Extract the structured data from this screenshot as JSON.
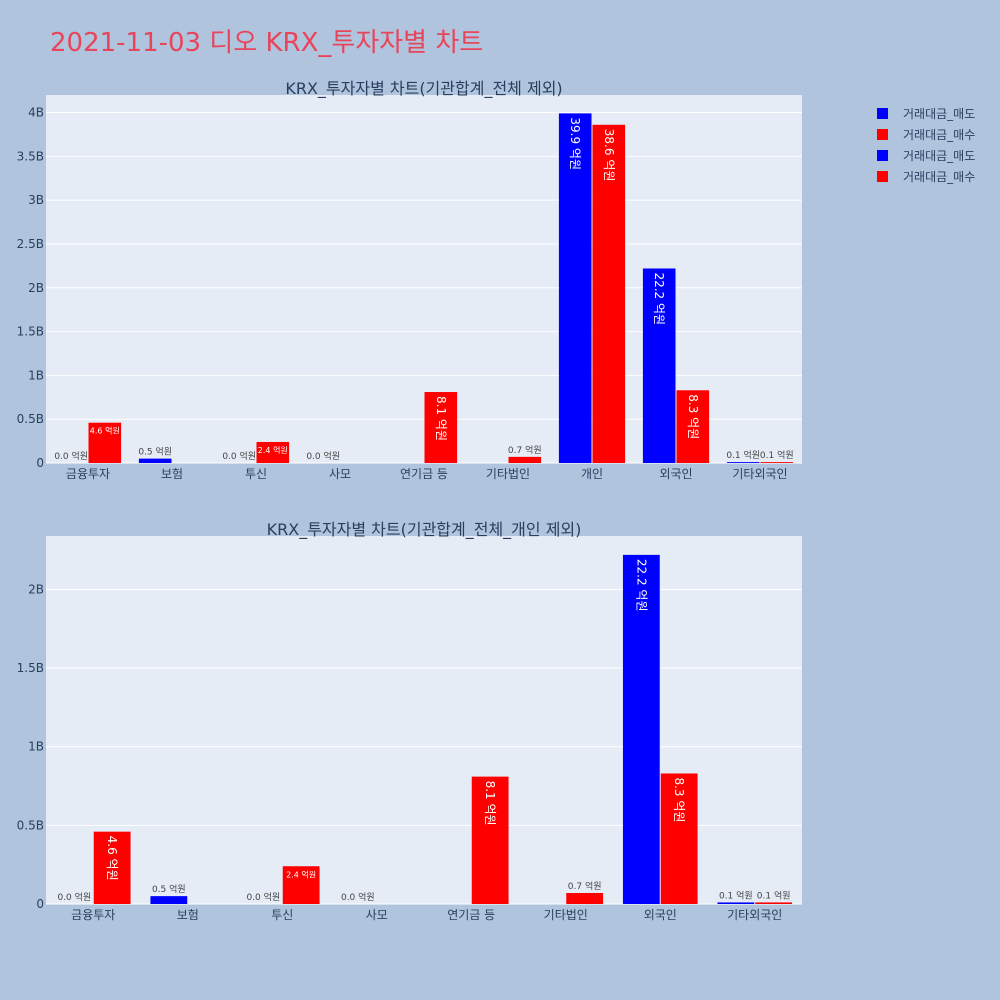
{
  "page": {
    "title": "2021-11-03 디오 KRX_투자자별 차트"
  },
  "legend": {
    "position": "top-right",
    "items": [
      {
        "label": "거래대금_매도",
        "color": "#0000ff"
      },
      {
        "label": "거래대금_매수",
        "color": "#ff0000"
      },
      {
        "label": "거래대금_매도",
        "color": "#0000ff"
      },
      {
        "label": "거래대금_매수",
        "color": "#ff0000"
      }
    ]
  },
  "colors": {
    "sell": "#0000ff",
    "buy": "#ff0000",
    "plot_bg": "#e5ecf6",
    "page_bg": "#b0c4de",
    "title": "#e8455a"
  },
  "chart_data": [
    {
      "type": "bar",
      "title": "KRX_투자자별 차트(기관합계_전체 제외)",
      "categories": [
        "금융투자",
        "보험",
        "투신",
        "사모",
        "연기금 등",
        "기타법인",
        "개인",
        "외국인",
        "기타외국인"
      ],
      "series": [
        {
          "name": "거래대금_매도",
          "color": "#0000ff",
          "values": [
            0.0,
            0.05,
            0.0,
            0.0,
            0.0,
            0.0,
            3.99,
            2.22,
            0.01
          ],
          "labels": [
            "0.0 억원",
            "0.5 억원",
            "0.0 억원",
            "0.0 억원",
            "",
            "",
            "39.9 억원",
            "22.2 억원",
            "0.1 억원"
          ]
        },
        {
          "name": "거래대금_매수",
          "color": "#ff0000",
          "values": [
            0.46,
            0.0,
            0.24,
            0.0,
            0.81,
            0.07,
            3.86,
            0.83,
            0.01
          ],
          "labels": [
            "4.6 억원",
            "",
            "2.4 억원",
            "",
            "8.1 억원",
            "0.7 억원",
            "38.6 억원",
            "8.3 억원",
            "0.1 억원"
          ]
        }
      ],
      "yunit": "B",
      "yticks": [
        0,
        0.5,
        1,
        1.5,
        2,
        2.5,
        3,
        3.5,
        4
      ],
      "ytick_labels": [
        "0",
        "0.5B",
        "1B",
        "1.5B",
        "2B",
        "2.5B",
        "3B",
        "3.5B",
        "4B"
      ],
      "ylim": [
        0,
        4.2
      ],
      "grid": true
    },
    {
      "type": "bar",
      "title": "KRX_투자자별 차트(기관합계_전체_개인 제외)",
      "categories": [
        "금융투자",
        "보험",
        "투신",
        "사모",
        "연기금 등",
        "기타법인",
        "외국인",
        "기타외국인"
      ],
      "series": [
        {
          "name": "거래대금_매도",
          "color": "#0000ff",
          "values": [
            0.0,
            0.05,
            0.0,
            0.0,
            0.0,
            0.0,
            2.22,
            0.01
          ],
          "labels": [
            "0.0 억원",
            "0.5 억원",
            "0.0 억원",
            "0.0 억원",
            "",
            "",
            "22.2 억원",
            "0.1 억원"
          ]
        },
        {
          "name": "거래대금_매수",
          "color": "#ff0000",
          "values": [
            0.46,
            0.0,
            0.24,
            0.0,
            0.81,
            0.07,
            0.83,
            0.01
          ],
          "labels": [
            "4.6 억원",
            "",
            "2.4 억원",
            "",
            "8.1 억원",
            "0.7 억원",
            "8.3 억원",
            "0.1 억원"
          ]
        }
      ],
      "yunit": "B",
      "yticks": [
        0,
        0.5,
        1,
        1.5,
        2
      ],
      "ytick_labels": [
        "0",
        "0.5B",
        "1B",
        "1.5B",
        "2B"
      ],
      "ylim": [
        0,
        2.34
      ],
      "grid": true
    }
  ]
}
